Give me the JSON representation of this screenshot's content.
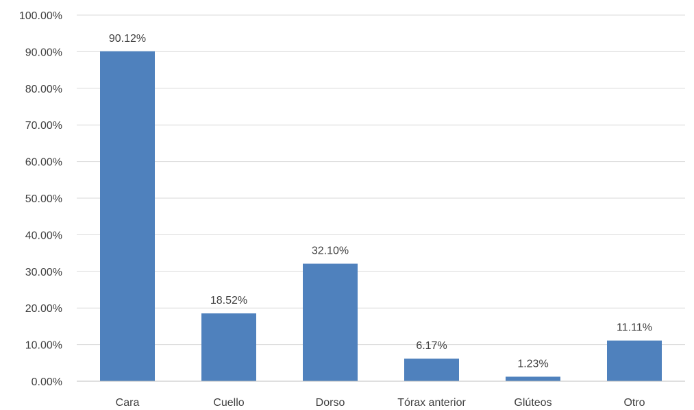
{
  "chart_data": {
    "type": "bar",
    "categories": [
      "Cara",
      "Cuello",
      "Dorso",
      "Tórax anterior",
      "Glúteos",
      "Otro"
    ],
    "values": [
      90.12,
      18.52,
      32.1,
      6.17,
      1.23,
      11.11
    ],
    "data_labels": [
      "90.12%",
      "18.52%",
      "32.10%",
      "6.17%",
      "1.23%",
      "11.11%"
    ],
    "y_ticks": [
      "0.00%",
      "10.00%",
      "20.00%",
      "30.00%",
      "40.00%",
      "50.00%",
      "60.00%",
      "70.00%",
      "80.00%",
      "90.00%",
      "100.00%"
    ],
    "ylim": [
      0,
      100
    ],
    "title": "",
    "xlabel": "",
    "ylabel": "",
    "grid": true,
    "legend": "none",
    "bar_color": "#4f81bd"
  }
}
